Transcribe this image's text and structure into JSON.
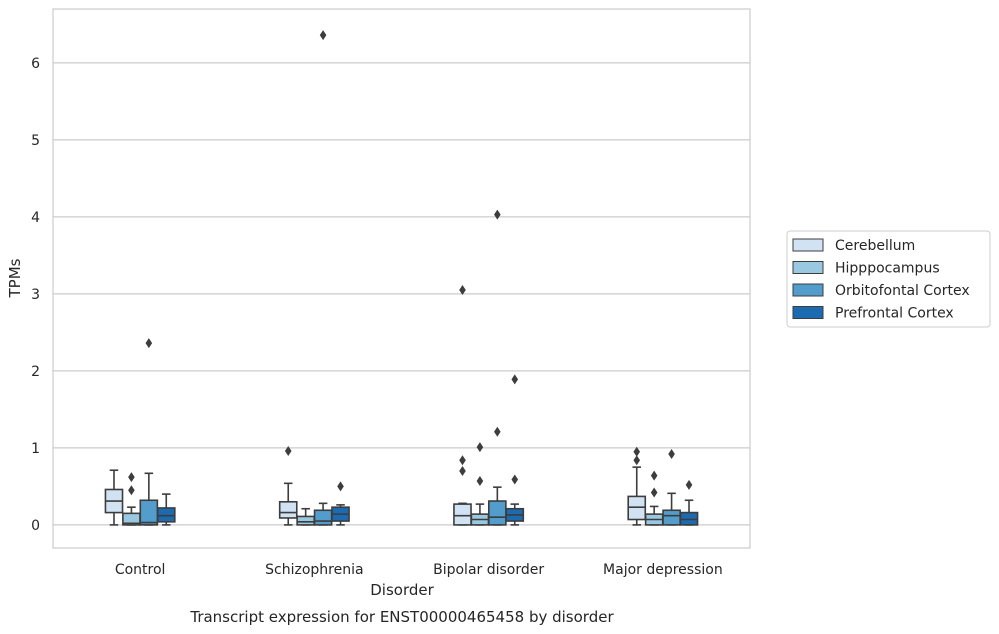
{
  "chart_data": {
    "type": "box",
    "title": "",
    "caption": "Transcript expression for ENST00000465458 by disorder",
    "xlabel": "Disorder",
    "ylabel": "TPMs",
    "ylim": [
      -0.3,
      6.7
    ],
    "yticks": [
      0,
      1,
      2,
      3,
      4,
      5,
      6
    ],
    "grid": true,
    "legend_position": "right",
    "categories": [
      "Control",
      "Schizophrenia",
      "Bipolar disorder",
      "Major depression"
    ],
    "series": [
      {
        "name": "Cerebellum",
        "color": "#d1e3f3",
        "boxes": [
          {
            "whislo": 0.0,
            "q1": 0.16,
            "med": 0.31,
            "q3": 0.46,
            "whishi": 0.71,
            "fliers": []
          },
          {
            "whislo": 0.0,
            "q1": 0.09,
            "med": 0.16,
            "q3": 0.3,
            "whishi": 0.54,
            "fliers": [
              0.96
            ]
          },
          {
            "whislo": 0.0,
            "q1": 0.0,
            "med": 0.12,
            "q3": 0.27,
            "whishi": 0.28,
            "fliers": [
              0.7,
              0.84,
              3.05
            ]
          },
          {
            "whislo": 0.0,
            "q1": 0.07,
            "med": 0.23,
            "q3": 0.37,
            "whishi": 0.75,
            "fliers": [
              0.84,
              0.95
            ]
          }
        ]
      },
      {
        "name": "Hipppocampus",
        "color": "#9ac8e0",
        "boxes": [
          {
            "whislo": 0.0,
            "q1": 0.0,
            "med": 0.02,
            "q3": 0.15,
            "whishi": 0.23,
            "fliers": [
              0.45,
              0.62
            ]
          },
          {
            "whislo": 0.0,
            "q1": 0.0,
            "med": 0.04,
            "q3": 0.11,
            "whishi": 0.21,
            "fliers": []
          },
          {
            "whislo": 0.0,
            "q1": 0.0,
            "med": 0.07,
            "q3": 0.14,
            "whishi": 0.27,
            "fliers": [
              0.57,
              1.01
            ]
          },
          {
            "whislo": 0.0,
            "q1": 0.0,
            "med": 0.07,
            "q3": 0.14,
            "whishi": 0.24,
            "fliers": [
              0.42,
              0.64
            ]
          }
        ]
      },
      {
        "name": "Orbitofontal Cortex",
        "color": "#529dcc",
        "boxes": [
          {
            "whislo": 0.0,
            "q1": 0.0,
            "med": 0.03,
            "q3": 0.32,
            "whishi": 0.67,
            "fliers": [
              2.36
            ]
          },
          {
            "whislo": 0.0,
            "q1": 0.0,
            "med": 0.05,
            "q3": 0.19,
            "whishi": 0.28,
            "fliers": [
              6.36
            ]
          },
          {
            "whislo": 0.0,
            "q1": 0.0,
            "med": 0.1,
            "q3": 0.31,
            "whishi": 0.49,
            "fliers": [
              1.21,
              4.03
            ]
          },
          {
            "whislo": 0.0,
            "q1": 0.0,
            "med": 0.12,
            "q3": 0.19,
            "whishi": 0.41,
            "fliers": [
              0.92
            ]
          }
        ]
      },
      {
        "name": "Prefrontal Cortex",
        "color": "#1c6aaf",
        "boxes": [
          {
            "whislo": 0.0,
            "q1": 0.04,
            "med": 0.12,
            "q3": 0.22,
            "whishi": 0.4,
            "fliers": []
          },
          {
            "whislo": 0.0,
            "q1": 0.05,
            "med": 0.14,
            "q3": 0.23,
            "whishi": 0.26,
            "fliers": [
              0.5
            ]
          },
          {
            "whislo": 0.0,
            "q1": 0.05,
            "med": 0.13,
            "q3": 0.21,
            "whishi": 0.27,
            "fliers": [
              0.59,
              1.89
            ]
          },
          {
            "whislo": 0.0,
            "q1": 0.0,
            "med": 0.07,
            "q3": 0.16,
            "whishi": 0.32,
            "fliers": [
              0.52
            ]
          }
        ]
      }
    ]
  }
}
